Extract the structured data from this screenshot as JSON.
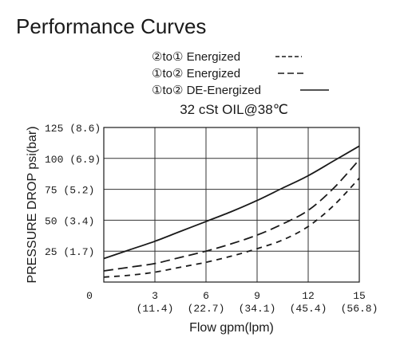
{
  "page": {
    "title": "Performance Curves"
  },
  "chart_data": {
    "type": "line",
    "subtitle": "32 cSt OIL@38℃",
    "xlabel": "Flow gpm(lpm)",
    "ylabel": "PRESSURE DROP psi(bar)",
    "xlim": [
      0,
      15
    ],
    "ylim": [
      0,
      125
    ],
    "grid": true,
    "legend_position": "top-center",
    "x_ticks": [
      {
        "value": 0,
        "label": "0",
        "sublabel": ""
      },
      {
        "value": 3,
        "label": "3",
        "sublabel": "(11.4)"
      },
      {
        "value": 6,
        "label": "6",
        "sublabel": "(22.7)"
      },
      {
        "value": 9,
        "label": "9",
        "sublabel": "(34.1)"
      },
      {
        "value": 12,
        "label": "12",
        "sublabel": "(45.4)"
      },
      {
        "value": 15,
        "label": "15",
        "sublabel": "(56.8)"
      }
    ],
    "y_ticks": [
      {
        "value": 25,
        "label": "25 (1.7)"
      },
      {
        "value": 50,
        "label": "50 (3.4)"
      },
      {
        "value": 75,
        "label": "75 (5.2)"
      },
      {
        "value": 100,
        "label": "100 (6.9)"
      },
      {
        "value": 125,
        "label": "125 (8.6)"
      }
    ],
    "series": [
      {
        "name": "②to① Energized",
        "legend_marker": "----",
        "style": "dash",
        "color": "#1a1a1a",
        "x": [
          0,
          1.5,
          3,
          4.5,
          6,
          7.5,
          9,
          10.5,
          12,
          13.5,
          15
        ],
        "y": [
          4,
          5.5,
          8,
          12,
          16,
          21,
          27,
          34,
          45,
          62,
          84
        ]
      },
      {
        "name": "①to② Energized",
        "legend_marker": "———",
        "style": "longdash",
        "color": "#1a1a1a",
        "x": [
          0,
          1.5,
          3,
          4.5,
          6,
          7.5,
          9,
          10.5,
          12,
          13.5,
          15
        ],
        "y": [
          9,
          12,
          15,
          20,
          25,
          31,
          38,
          47,
          58,
          76,
          99
        ]
      },
      {
        "name": "①to② DE-Energized",
        "legend_marker": "———",
        "style": "solid",
        "color": "#1a1a1a",
        "x": [
          0,
          1.5,
          3,
          4.5,
          6,
          7.5,
          9,
          10.5,
          12,
          13.5,
          15
        ],
        "y": [
          19,
          26,
          33,
          41,
          49,
          57,
          66,
          76,
          86,
          98,
          110
        ]
      }
    ]
  }
}
